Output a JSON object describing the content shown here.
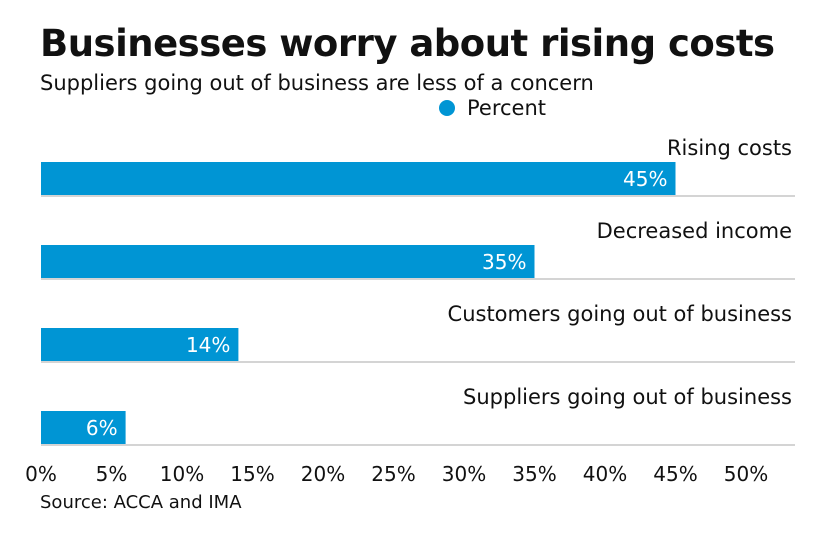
{
  "chart_data": {
    "type": "bar",
    "orientation": "horizontal",
    "title": "Businesses worry about rising costs",
    "subtitle": "Suppliers going out of business are less of a concern",
    "legend": "Percent",
    "legend_placement": "top-center",
    "categories": [
      "Rising costs",
      "Decreased income",
      "Customers going out of business",
      "Suppliers going out of business"
    ],
    "values": [
      45,
      35,
      14,
      6
    ],
    "data_labels": [
      "45%",
      "35%",
      "14%",
      "6%"
    ],
    "x_ticks": [
      "0%",
      "5%",
      "10%",
      "15%",
      "20%",
      "25%",
      "30%",
      "35%",
      "40%",
      "45%",
      "50%"
    ],
    "xlim": [
      0,
      50
    ],
    "source": "Source: ACCA and IMA"
  },
  "colors": {
    "bar": "#0095d4",
    "separator": "#aaaaaa",
    "label_text": "#ffffff"
  }
}
